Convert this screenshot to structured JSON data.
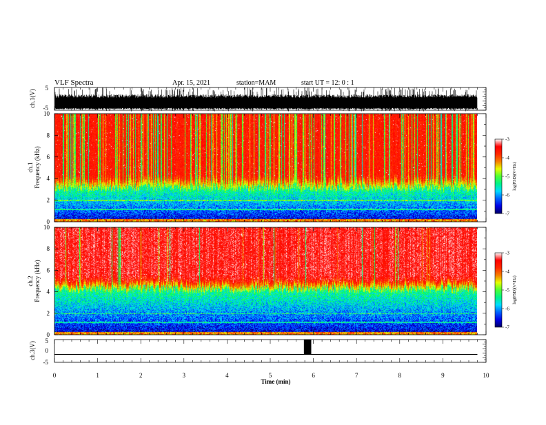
{
  "header": {
    "title": "VLF Spectra",
    "date": "Apr. 15, 2021",
    "station": "station=MAM",
    "start_ut": "start  UT =   12: 0  : 1"
  },
  "colors": {
    "spectrum_scale": [
      "#00008b",
      "#0000ff",
      "#00ffff",
      "#00ff00",
      "#ffff00",
      "#ff0000",
      "#ffffff"
    ]
  },
  "chart_data": [
    {
      "type": "line",
      "name": "ch1-waveform",
      "ylabel": "ch.1(V)",
      "ylim": [
        -5,
        5
      ],
      "yticks": [
        "5",
        "-5"
      ],
      "xlim": [
        0,
        10
      ],
      "description_values": {
        "mean_level": -1.5,
        "band_low": -4.0,
        "band_high": 0.5,
        "end_time": 9.8
      }
    },
    {
      "type": "heatmap",
      "name": "ch1-spectrogram",
      "ylabel": "ch.1\nFrequency (kHz)",
      "ylabel_line1": "ch.1",
      "ylabel_line2": "Frequency (kHz)",
      "ylim": [
        0,
        10
      ],
      "yticks": [
        "0",
        "2",
        "4",
        "6",
        "8",
        "10"
      ],
      "xlim": [
        0,
        10
      ],
      "data_end_time": 9.8,
      "low_band_top_khz": 3.2,
      "colorbar": {
        "label": "log(PSD)(V²/Hz)",
        "range": [
          -7,
          -3
        ],
        "ticks": [
          "-3",
          "-4",
          "-5",
          "-6",
          "-7"
        ]
      }
    },
    {
      "type": "heatmap",
      "name": "ch2-spectrogram",
      "ylabel_line1": "ch.2",
      "ylabel_line2": "Frequency (kHz)",
      "ylim": [
        0,
        10
      ],
      "yticks": [
        "0",
        "2",
        "4",
        "6",
        "8",
        "10"
      ],
      "xlim": [
        0,
        10
      ],
      "data_end_time": 9.8,
      "low_band_top_khz": 4.3,
      "colorbar": {
        "label": "log(PSD)(V²/Hz)",
        "range": [
          -7,
          -3
        ],
        "ticks": [
          "-3",
          "-4",
          "-5",
          "-6",
          "-7"
        ]
      }
    },
    {
      "type": "line",
      "name": "ch3-signal",
      "ylabel": "ch.3(V)",
      "ylim": [
        -5,
        5
      ],
      "yticks": [
        "5",
        "0",
        "-5"
      ],
      "xlim": [
        0,
        10
      ],
      "baseline": -1.5,
      "pulse": {
        "start": 5.78,
        "end": 5.95,
        "low": -1.5,
        "high": 5
      },
      "xlabel": "Time  (min)",
      "xticks": [
        "0",
        "1",
        "2",
        "3",
        "4",
        "5",
        "6",
        "7",
        "8",
        "9",
        "10"
      ]
    }
  ]
}
